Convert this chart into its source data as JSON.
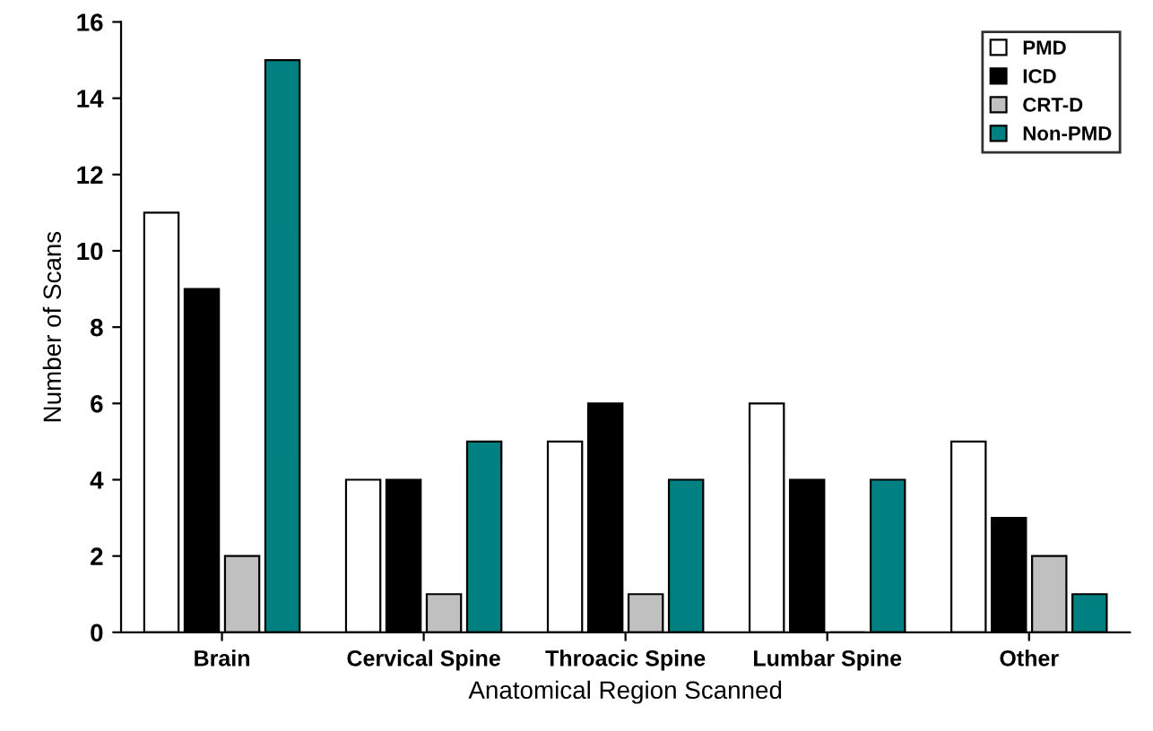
{
  "chart_data": {
    "type": "bar",
    "xlabel": "Anatomical Region Scanned",
    "ylabel": "Number of Scans",
    "categories": [
      "Brain",
      "Cervical Spine",
      "Throacic Spine",
      "Lumbar Spine",
      "Other"
    ],
    "series": [
      {
        "name": "PMD",
        "color": "#ffffff",
        "values": [
          11,
          4,
          5,
          6,
          5
        ]
      },
      {
        "name": "ICD",
        "color": "#000000",
        "values": [
          9,
          4,
          6,
          4,
          3
        ]
      },
      {
        "name": "CRT-D",
        "color": "#c0c0c0",
        "values": [
          2,
          1,
          1,
          0,
          2
        ]
      },
      {
        "name": "Non-PMD",
        "color": "#008080",
        "values": [
          15,
          5,
          4,
          4,
          1
        ]
      }
    ],
    "ylim": [
      0,
      16
    ],
    "yticks": [
      0,
      2,
      4,
      6,
      8,
      10,
      12,
      14,
      16
    ],
    "grid": false,
    "legend": "top right"
  }
}
